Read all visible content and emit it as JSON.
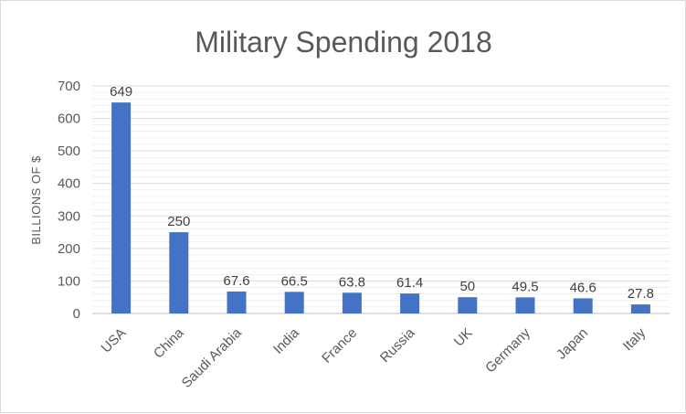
{
  "chart_data": {
    "type": "bar",
    "title": "Military Spending 2018",
    "xlabel": "",
    "ylabel": "BILLIONS OF $",
    "categories": [
      "USA",
      "China",
      "Saudi Arabia",
      "India",
      "France",
      "Russia",
      "UK",
      "Germany",
      "Japan",
      "Italy"
    ],
    "values": [
      649,
      250,
      67.6,
      66.5,
      63.8,
      61.4,
      50,
      49.5,
      46.6,
      27.8
    ],
    "data_labels": [
      "649",
      "250",
      "67.6",
      "66.5",
      "63.8",
      "61.4",
      "50",
      "49.5",
      "46.6",
      "27.8"
    ],
    "ylim": [
      0,
      700
    ],
    "yticks": [
      "0",
      "100",
      "200",
      "300",
      "400",
      "500",
      "600",
      "700"
    ],
    "ytick_values": [
      0,
      100,
      200,
      300,
      400,
      500,
      600,
      700
    ],
    "minor_gridline_step": 20,
    "grid": true,
    "bar_color": "#4472c4",
    "gridline_color": "#d9d9d9"
  }
}
